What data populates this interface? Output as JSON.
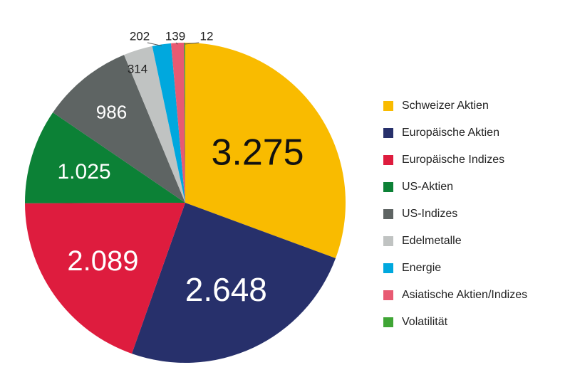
{
  "chart_data": {
    "type": "pie",
    "title": "",
    "categories": [
      "Schweizer Aktien",
      "Europäische Aktien",
      "Europäische Indizes",
      "US-Aktien",
      "US-Indizes",
      "Edelmetalle",
      "Energie",
      "Asiatische Aktien/Indizes",
      "Volatilität"
    ],
    "values": [
      3275,
      2648,
      2089,
      1025,
      986,
      314,
      202,
      139,
      12
    ],
    "data_labels": [
      "3.275",
      "2.648",
      "2.089",
      "1.025",
      "986",
      "314",
      "202",
      "139",
      "12"
    ],
    "colors": [
      "#f9bb00",
      "#27306b",
      "#de1c3e",
      "#0c8136",
      "#5e6463",
      "#c0c3c2",
      "#00a8de",
      "#e85a72",
      "#3fa535"
    ],
    "label_colors": [
      "#111111",
      "#ffffff",
      "#ffffff",
      "#ffffff",
      "#ffffff",
      "#222222",
      "#222222",
      "#222222",
      "#222222"
    ],
    "start_angle_deg": 0,
    "direction": "clockwise",
    "legend_position": "right"
  }
}
